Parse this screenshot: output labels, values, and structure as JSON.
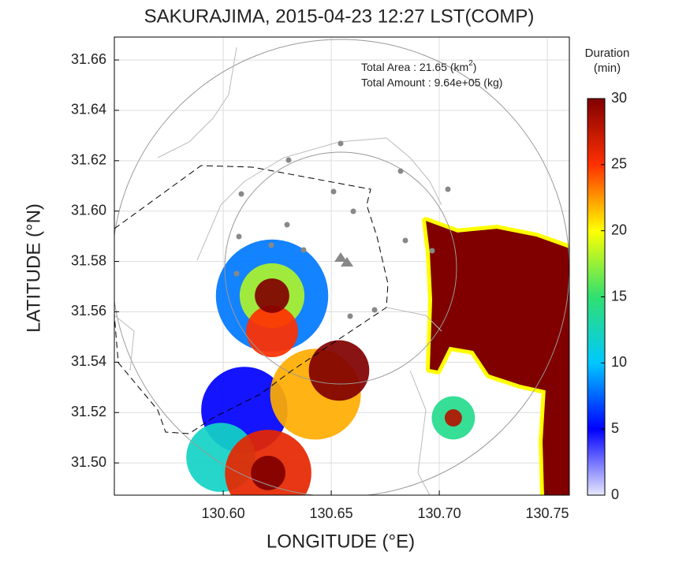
{
  "chart_data": {
    "type": "radar-map",
    "title": "SAKURAJIMA, 2015-04-23 12:27 LST(COMP)",
    "x_label": "LONGITUDE (°E)",
    "y_label": "LATITUDE (°N)",
    "xlim": [
      130.5496,
      130.7602
    ],
    "ylim": [
      31.4872,
      31.6691
    ],
    "xticks": [
      {
        "value": 130.6,
        "label": "130.60"
      },
      130.65,
      {
        "value": 130.7,
        "label": "130.70"
      },
      130.75
    ],
    "yticks": [
      {
        "value": 31.5,
        "label": "31.50"
      },
      31.52,
      31.54,
      31.56,
      31.58,
      {
        "value": 31.6,
        "label": "31.60"
      },
      31.62,
      31.64,
      31.66
    ],
    "grid": true,
    "annotations": [
      {
        "text": "Total Area   : 21.65 (km",
        "sup": "2",
        "tail": ")"
      },
      {
        "text": "Total Amount : 9.64e+05 (kg)"
      }
    ],
    "colorbar": {
      "title": [
        "Duration",
        "(min)"
      ],
      "lim": [
        0,
        30
      ],
      "ticks": [
        0,
        5,
        10,
        15,
        20,
        25,
        30
      ],
      "colorscale": [
        [
          0,
          "#e8e8ff"
        ],
        [
          5,
          "#0000ff"
        ],
        [
          10,
          "#00c8ff"
        ],
        [
          15,
          "#30e070"
        ],
        [
          20,
          "#ffff00"
        ],
        [
          25,
          "#ff3000"
        ],
        [
          30,
          "#800000"
        ]
      ]
    },
    "echoes": [
      {
        "lon": 130.6226,
        "lat": 31.5664,
        "r": 0.026,
        "value": 8
      },
      {
        "lon": 130.6098,
        "lat": 31.521,
        "r": 0.02,
        "value": 5
      },
      {
        "lon": 130.5989,
        "lat": 31.5022,
        "r": 0.016,
        "value": 12
      },
      {
        "lon": 130.6427,
        "lat": 31.5273,
        "r": 0.021,
        "value": 22
      },
      {
        "lon": 130.6208,
        "lat": 31.496,
        "r": 0.02,
        "value": 26
      },
      {
        "lon": 130.6226,
        "lat": 31.5664,
        "r": 0.015,
        "value": 18
      },
      {
        "lon": 130.6226,
        "lat": 31.5523,
        "r": 0.012,
        "value": 25
      },
      {
        "lon": 130.6536,
        "lat": 31.5367,
        "r": 0.014,
        "value": 30
      },
      {
        "lon": 130.6226,
        "lat": 31.5664,
        "r": 0.008,
        "value": 30
      },
      {
        "lon": 130.6208,
        "lat": 31.496,
        "r": 0.008,
        "value": 30
      },
      {
        "lon": 130.7065,
        "lat": 31.5179,
        "r": 0.01,
        "value": 14
      },
      {
        "lon": 130.7065,
        "lat": 31.5179,
        "r": 0.004,
        "value": 28
      }
    ],
    "region": {
      "value": 30,
      "lon": [
        130.6938,
        130.7084,
        130.7266,
        130.7449,
        130.7602,
        130.7602,
        130.7485,
        130.7478,
        130.7492,
        130.7376,
        130.723,
        130.7157,
        130.7047,
        130.6992,
        130.6956,
        130.6967,
        130.6956
      ],
      "lat": [
        31.5961,
        31.5915,
        31.593,
        31.5899,
        31.5852,
        31.4872,
        31.4872,
        31.5085,
        31.5288,
        31.531,
        31.5351,
        31.5445,
        31.5461,
        31.5367,
        31.5373,
        31.5648,
        31.5836
      ]
    }
  }
}
